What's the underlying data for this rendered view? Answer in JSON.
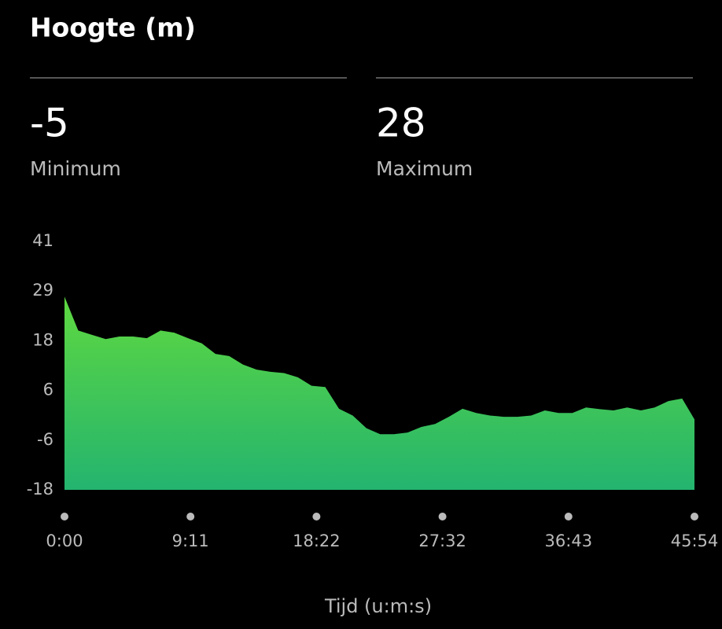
{
  "header": {
    "title": "Hoogte (m)"
  },
  "stats": [
    {
      "value": -5,
      "label": "Minimum"
    },
    {
      "value": 28,
      "label": "Maximum"
    }
  ],
  "chart_data": {
    "type": "area",
    "xlabel": "Tijd (u:m:s)",
    "x": [
      0,
      60,
      120,
      180,
      240,
      300,
      360,
      420,
      480,
      540,
      600,
      660,
      720,
      780,
      840,
      900,
      960,
      1020,
      1080,
      1140,
      1200,
      1260,
      1320,
      1380,
      1440,
      1500,
      1560,
      1620,
      1680,
      1740,
      1800,
      1860,
      1920,
      1980,
      2040,
      2100,
      2160,
      2220,
      2280,
      2340,
      2400,
      2460,
      2520,
      2580,
      2640,
      2700,
      2754
    ],
    "values": [
      28,
      20,
      19,
      18,
      18.6,
      18.6,
      18.2,
      20,
      19.5,
      18.2,
      17,
      14.5,
      14,
      12,
      10.8,
      10.3,
      10,
      9,
      7,
      6.7,
      1.6,
      0,
      -3,
      -4.4,
      -4.4,
      -4,
      -2.7,
      -2,
      -0.3,
      1.6,
      0.6,
      0,
      -0.3,
      -0.3,
      0,
      1.2,
      0.6,
      0.6,
      1.9,
      1.5,
      1.2,
      1.9,
      1.2,
      1.9,
      3.4,
      4,
      -0.9
    ],
    "xlim": [
      0,
      2754
    ],
    "xticks": [
      {
        "value": 0,
        "label": "0:00"
      },
      {
        "value": 550.8,
        "label": "9:11"
      },
      {
        "value": 1101.6,
        "label": "18:22"
      },
      {
        "value": 1652.4,
        "label": "27:32"
      },
      {
        "value": 2203.2,
        "label": "36:43"
      },
      {
        "value": 2754,
        "label": "45:54"
      }
    ],
    "ylim": [
      -17.5,
      41
    ],
    "yticks": [
      {
        "value": 41,
        "label": "41"
      },
      {
        "value": 29.3,
        "label": "29"
      },
      {
        "value": 17.6,
        "label": "18"
      },
      {
        "value": 5.9,
        "label": "6"
      },
      {
        "value": -5.8,
        "label": "-6"
      },
      {
        "value": -17.5,
        "label": "-18"
      }
    ]
  }
}
